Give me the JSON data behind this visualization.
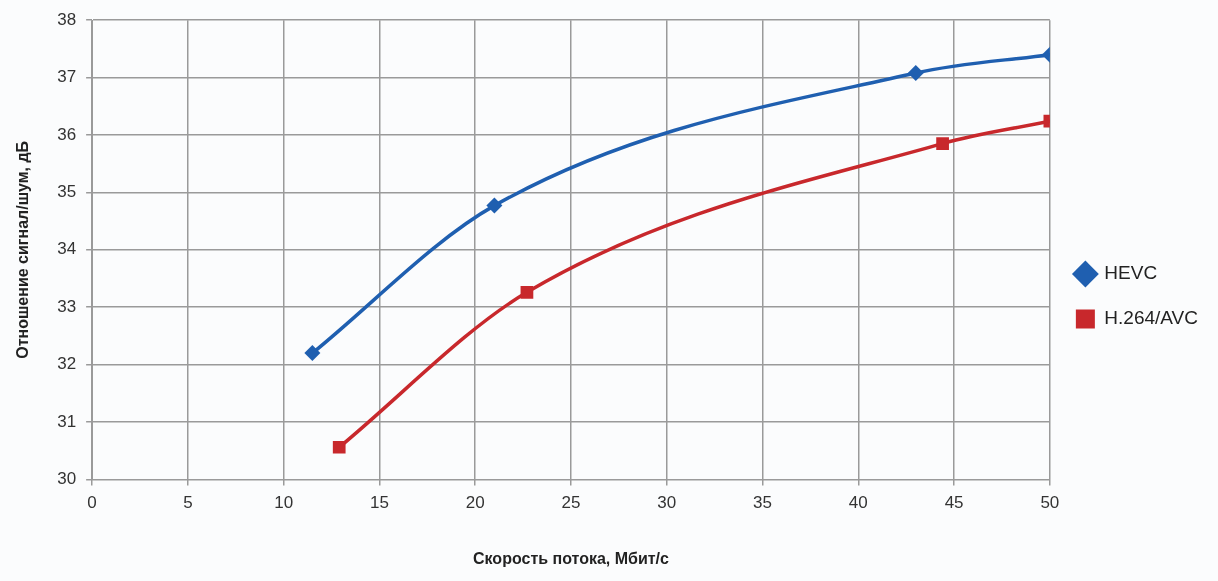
{
  "chart_data": {
    "type": "line",
    "xlabel": "Скорость потока, Мбит/с",
    "ylabel": "Отношение сигнал/шум, дБ",
    "xlim": [
      0,
      50
    ],
    "xticks": [
      0,
      5,
      10,
      15,
      20,
      25,
      30,
      35,
      40,
      45,
      50
    ],
    "ylim": [
      30,
      38
    ],
    "yticks": [
      30,
      31,
      32,
      33,
      34,
      35,
      36,
      37,
      38
    ],
    "grid": true,
    "legend": "right",
    "series": [
      {
        "name": "HEVC",
        "color": "#1f5fb0",
        "marker": "diamond",
        "x": [
          11.5,
          21.0,
          43.0,
          50
        ],
        "values": [
          32.2,
          34.77,
          37.08,
          37.4
        ]
      },
      {
        "name": "H.264/AVC",
        "color": "#c8282c",
        "marker": "square",
        "x": [
          12.9,
          22.7,
          44.4,
          50
        ],
        "values": [
          30.56,
          33.26,
          35.85,
          36.24
        ]
      }
    ]
  }
}
